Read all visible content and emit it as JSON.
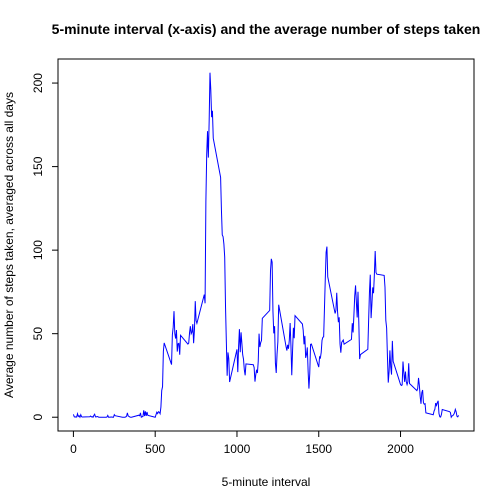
{
  "chart_data": {
    "type": "line",
    "title": "5-minute interval (x-axis) and the average number of steps taken",
    "x_label": "5-minute interval",
    "y_label": "Average number of steps taken, averaged across all days",
    "xlim": [
      -94.2,
      2449.2
    ],
    "ylim": [
      -8.25,
      214.4
    ],
    "xticks": [
      0,
      500,
      1000,
      1500,
      2000
    ],
    "yticks": [
      0,
      50,
      100,
      150,
      200
    ],
    "grid": false,
    "x": [
      0,
      5,
      10,
      15,
      20,
      25,
      30,
      35,
      40,
      45,
      50,
      55,
      100,
      105,
      110,
      115,
      120,
      125,
      130,
      135,
      140,
      145,
      150,
      155,
      200,
      205,
      210,
      215,
      220,
      225,
      230,
      235,
      240,
      245,
      250,
      255,
      300,
      305,
      310,
      315,
      320,
      325,
      330,
      335,
      340,
      345,
      350,
      355,
      400,
      405,
      410,
      415,
      420,
      425,
      430,
      435,
      440,
      445,
      450,
      455,
      500,
      505,
      510,
      515,
      520,
      525,
      530,
      535,
      540,
      545,
      550,
      555,
      600,
      605,
      610,
      615,
      620,
      625,
      630,
      635,
      640,
      645,
      650,
      655,
      700,
      705,
      710,
      715,
      720,
      725,
      730,
      735,
      740,
      745,
      750,
      755,
      800,
      805,
      810,
      815,
      820,
      825,
      830,
      835,
      840,
      845,
      850,
      855,
      900,
      905,
      910,
      915,
      920,
      925,
      930,
      935,
      940,
      945,
      950,
      955,
      1000,
      1005,
      1010,
      1015,
      1020,
      1025,
      1030,
      1035,
      1040,
      1045,
      1050,
      1055,
      1100,
      1105,
      1110,
      1115,
      1120,
      1125,
      1130,
      1135,
      1140,
      1145,
      1150,
      1155,
      1200,
      1205,
      1210,
      1215,
      1220,
      1225,
      1230,
      1235,
      1240,
      1245,
      1250,
      1255,
      1300,
      1305,
      1310,
      1315,
      1320,
      1325,
      1330,
      1335,
      1340,
      1345,
      1350,
      1355,
      1400,
      1405,
      1410,
      1415,
      1420,
      1425,
      1430,
      1435,
      1440,
      1445,
      1450,
      1455,
      1500,
      1505,
      1510,
      1515,
      1520,
      1525,
      1530,
      1535,
      1540,
      1545,
      1550,
      1555,
      1600,
      1605,
      1610,
      1615,
      1620,
      1625,
      1630,
      1635,
      1640,
      1645,
      1650,
      1655,
      1700,
      1705,
      1710,
      1715,
      1720,
      1725,
      1730,
      1735,
      1740,
      1745,
      1750,
      1755,
      1800,
      1805,
      1810,
      1815,
      1820,
      1825,
      1830,
      1835,
      1840,
      1845,
      1850,
      1855,
      1900,
      1905,
      1910,
      1915,
      1920,
      1925,
      1930,
      1935,
      1940,
      1945,
      1950,
      1955,
      2000,
      2005,
      2010,
      2015,
      2020,
      2025,
      2030,
      2035,
      2040,
      2045,
      2050,
      2055,
      2100,
      2105,
      2110,
      2115,
      2120,
      2125,
      2130,
      2135,
      2140,
      2145,
      2150,
      2155,
      2200,
      2205,
      2210,
      2215,
      2220,
      2225,
      2230,
      2235,
      2240,
      2245,
      2250,
      2255,
      2300,
      2305,
      2310,
      2315,
      2320,
      2325,
      2330,
      2335,
      2340,
      2345,
      2350,
      2355
    ],
    "series": [
      {
        "name": "steps",
        "color": "#0000ff",
        "values": [
          1.7,
          0.3,
          0.1,
          0.2,
          0.1,
          2.1,
          0.5,
          0.9,
          0,
          1.5,
          0.3,
          0.1,
          0.3,
          0.7,
          0.2,
          0.3,
          0,
          1.1,
          1.8,
          0.2,
          0.2,
          0.4,
          0.3,
          0,
          0,
          0.1,
          1.1,
          0,
          0,
          0.1,
          0,
          0.2,
          0,
          0,
          1.5,
          0.9,
          0,
          0,
          0,
          0,
          0.2,
          0.6,
          2.6,
          0.7,
          0.5,
          0.1,
          0,
          0,
          1.2,
          0.9,
          2.6,
          0,
          0.3,
          0.4,
          4.1,
          0.7,
          3.5,
          0.8,
          3.1,
          1.1,
          0,
          1.5,
          3,
          2.2,
          3.3,
          3,
          2.1,
          6.1,
          16,
          18.3,
          39.5,
          44.5,
          31.5,
          49.3,
          53.8,
          63.5,
          50,
          47.1,
          52.2,
          39.3,
          44,
          44.2,
          37.4,
          49,
          43.8,
          44.4,
          50.5,
          54.5,
          49.9,
          50.9,
          55.7,
          44.3,
          52.3,
          69.5,
          57.8,
          56.2,
          73.4,
          68.2,
          129.4,
          157.5,
          171.2,
          155.4,
          177.3,
          206.2,
          195.9,
          179.6,
          183.4,
          167,
          143.5,
          124,
          109.1,
          108.1,
          103.7,
          95.9,
          66.2,
          45.2,
          24.8,
          38.8,
          35,
          21.1,
          40.6,
          27,
          42.4,
          52.7,
          38.9,
          50.8,
          44.3,
          37.4,
          34.7,
          28.3,
          25.1,
          31.9,
          31.4,
          29.7,
          21.3,
          25.5,
          28.4,
          26.5,
          33.4,
          50,
          42,
          44.6,
          46,
          59.2,
          63.9,
          87.6,
          94.8,
          92.8,
          63.4,
          50.2,
          54.5,
          32.4,
          26.5,
          37.7,
          45.1,
          67.3,
          42.3,
          39.9,
          43.3,
          41,
          46.2,
          56.4,
          42.8,
          25.1,
          40,
          53.5,
          47.3,
          60.8,
          55.8,
          52,
          43.6,
          48.7,
          35.5,
          37.5,
          41.8,
          27.5,
          17.1,
          26.1,
          43.6,
          43.8,
          30,
          36.1,
          35.5,
          38.8,
          46,
          47.8,
          48.1,
          65.3,
          82.9,
          98.7,
          102.1,
          84,
          62.1,
          64.1,
          74.5,
          63.2,
          56.9,
          59.8,
          43.9,
          38.6,
          44.7,
          45.5,
          46.2,
          43.7,
          46.6,
          56.3,
          50.7,
          61.2,
          72.7,
          78.9,
          68.9,
          59.7,
          75.1,
          56.5,
          34.8,
          37.5,
          40.7,
          58,
          74.7,
          85.3,
          59.3,
          67.8,
          77.7,
          74.2,
          85.3,
          99.5,
          86.6,
          85.6,
          84.9,
          77.8,
          58,
          53.4,
          36.3,
          20.7,
          27.4,
          40,
          30.2,
          25.5,
          45.7,
          33.5,
          19.6,
          19,
          19.3,
          33.3,
          26.8,
          21.2,
          27.3,
          21.3,
          19.5,
          21.3,
          32.3,
          20.2,
          15.9,
          17.2,
          23.5,
          19.2,
          12.5,
          8,
          14.7,
          16.3,
          8.7,
          7.8,
          8.1,
          2.6,
          1.5,
          3.7,
          4.8,
          8.5,
          7.1,
          8.7,
          9.8,
          2.2,
          0.3,
          0.1,
          1.6,
          4.6,
          3.3,
          2.8,
          0,
          0.8,
          1,
          1.6,
          2.6,
          4.7,
          3.3,
          0.6,
          0.2,
          1.1
        ]
      }
    ]
  }
}
